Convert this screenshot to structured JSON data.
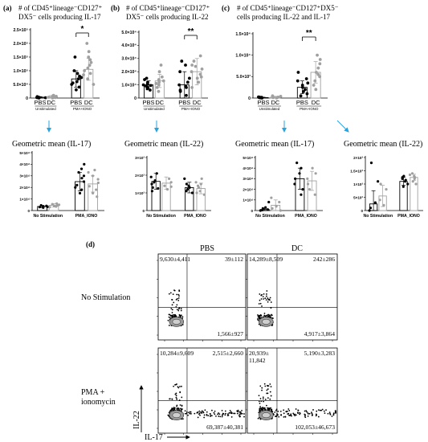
{
  "figure": {
    "panel_labels": [
      "(a)",
      "(b)",
      "(c)",
      "(d)"
    ],
    "geo_titles": [
      "Geometric mean (IL-17)",
      "Geometric mean (IL-22)",
      "Geometric mean (IL-17)",
      "Geometric mean (IL-22)"
    ],
    "colors": {
      "pbs": "#000000",
      "dc": "#a0a0a0",
      "arrow": "#29a3dc",
      "gate": "#9a9a9a"
    },
    "flow": {
      "col_titles": [
        "PBS",
        "DC"
      ],
      "row_titles": [
        [
          "No Stimulation"
        ],
        [
          "PMA +",
          "ionomycin"
        ]
      ],
      "y_axis": "IL-22",
      "x_axis": "IL-17",
      "quadrants": [
        {
          "ul": [
            "9,630±4,411"
          ],
          "ur": [
            "39±112"
          ],
          "lr": [
            "1,566±927"
          ]
        },
        {
          "ul": [
            "14,289±8,509"
          ],
          "ur": [
            "242±286"
          ],
          "lr": [
            "4,917±3,864"
          ]
        },
        {
          "ul": [
            "10,284±9,609"
          ],
          "ur": [
            "2,515±2,660"
          ],
          "lr": [
            "69,387±40,381"
          ]
        },
        {
          "ul": [
            "20,939±",
            "11,842"
          ],
          "ur": [
            "5,190±3,283"
          ],
          "lr": [
            "102,053±46,673"
          ]
        }
      ]
    }
  },
  "chart_data": [
    {
      "type": "bar",
      "panel": "(a)",
      "title_lines": [
        "# of CD45⁺lineage⁻CD127⁺",
        "DX5⁻ cells producing IL-17"
      ],
      "ylim": [
        0,
        250000
      ],
      "ytick_labels": [
        "0",
        "5.0×10⁴",
        "1.0×10⁵",
        "1.5×10⁵",
        "2.0×10⁵",
        "2.5×10⁵"
      ],
      "ytick_values": [
        0,
        50000,
        100000,
        150000,
        200000,
        250000
      ],
      "categories": [
        "PBS",
        "DC",
        "PBS",
        "DC"
      ],
      "group_labels": [
        "Unstimulated",
        "PMA+IONO"
      ],
      "values": [
        3000,
        5000,
        70000,
        105000
      ],
      "errors": [
        2000,
        4000,
        30000,
        40000
      ],
      "points": [
        [
          0,
          1000,
          2000,
          3000,
          4000,
          5000,
          1500
        ],
        [
          0,
          2000,
          4000,
          6000,
          8000,
          10000,
          3000
        ],
        [
          30000,
          40000,
          50000,
          60000,
          70000,
          80000,
          90000,
          100000,
          55000,
          75000,
          150000
        ],
        [
          50000,
          70000,
          90000,
          110000,
          130000,
          150000,
          170000,
          85000,
          120000,
          200000,
          140000,
          100000
        ]
      ],
      "significance": "*"
    },
    {
      "type": "bar",
      "panel": "(b)",
      "title_lines": [
        "# of CD45⁺lineage⁻CD127⁺",
        "DX5⁻ cells producing IL-22"
      ],
      "ylim": [
        0,
        50000
      ],
      "ytick_labels": [
        "0",
        "1.0×10⁴",
        "2.0×10⁴",
        "3.0×10⁴",
        "4.0×10⁴",
        "5.0×10⁴"
      ],
      "ytick_values": [
        0,
        10000,
        20000,
        30000,
        40000,
        50000
      ],
      "categories": [
        "PBS",
        "DC",
        "PBS",
        "DC"
      ],
      "group_labels": [
        "Unstimulated",
        "PMA+IONO"
      ],
      "values": [
        10000,
        13000,
        10000,
        20000
      ],
      "errors": [
        3000,
        5000,
        10000,
        10000
      ],
      "points": [
        [
          6000,
          7000,
          8000,
          9000,
          10000,
          11000,
          12000,
          14000,
          15000,
          9500,
          10500
        ],
        [
          5000,
          8000,
          10000,
          12000,
          14000,
          16000,
          20000,
          25000,
          11000,
          13000
        ],
        [
          2000,
          5000,
          8000,
          10000,
          12000,
          15000,
          20000,
          25000,
          28000,
          6000,
          9000
        ],
        [
          8000,
          12000,
          15000,
          18000,
          20000,
          22000,
          25000,
          28000,
          32000,
          16000,
          24000
        ]
      ],
      "significance": "**"
    },
    {
      "type": "bar",
      "panel": "(c)",
      "title_lines": [
        "# of CD45⁺lineage⁻CD127⁺DX5⁻",
        "cells producing IL-22 and IL-17"
      ],
      "ylim": [
        0,
        15000
      ],
      "ytick_labels": [
        "0",
        "5.0×10³",
        "1.0×10⁴",
        "1.5×10⁴"
      ],
      "ytick_values": [
        0,
        5000,
        10000,
        15000
      ],
      "categories": [
        "PBS",
        "DC",
        "PBS",
        "DC"
      ],
      "group_labels": [
        "Unstimulated",
        "PMA+IONO"
      ],
      "values": [
        100,
        200,
        2500,
        6000
      ],
      "errors": [
        100,
        200,
        1500,
        2500
      ],
      "points": [
        [
          0,
          50,
          100,
          150,
          200,
          250
        ],
        [
          0,
          100,
          200,
          300,
          400,
          500
        ],
        [
          500,
          1000,
          1500,
          2000,
          2500,
          3000,
          3500,
          4000,
          4500,
          6000
        ],
        [
          2000,
          3000,
          4000,
          5000,
          6000,
          7000,
          8000,
          9000,
          10000,
          5500
        ]
      ],
      "significance": "**"
    },
    {
      "type": "bar",
      "panel": "(a) geometric mean",
      "title": "Geometric mean (IL-17)",
      "ylim": [
        0,
        50000
      ],
      "ytick_labels": [
        "0",
        "1×10⁴",
        "2×10⁴",
        "3×10⁴",
        "4×10⁴",
        "5×10⁴"
      ],
      "ytick_values": [
        0,
        10000,
        20000,
        30000,
        40000,
        50000
      ],
      "categories": [
        "PBS",
        "DC",
        "PBS",
        "DC"
      ],
      "group_labels": [
        "No Stimulation",
        "PMA_IONO"
      ],
      "values": [
        3500,
        4500,
        25000,
        23000
      ],
      "errors": [
        1000,
        1500,
        8000,
        7000
      ],
      "points": [
        [
          2500,
          3000,
          3500,
          4000,
          4500,
          3200
        ],
        [
          3000,
          3500,
          4000,
          4500,
          5000,
          5500,
          6000
        ],
        [
          15000,
          18000,
          20000,
          22000,
          25000,
          28000,
          30000,
          33000,
          36000,
          40000
        ],
        [
          12000,
          15000,
          18000,
          21000,
          24000,
          27000,
          30000,
          33000,
          35000
        ]
      ]
    },
    {
      "type": "bar",
      "panel": "(b) geometric mean",
      "title": "Geometric mean (IL-22)",
      "ylim": [
        0,
        3000
      ],
      "ytick_labels": [
        "0",
        "1×10³",
        "2×10³",
        "3×10³"
      ],
      "ytick_values": [
        0,
        1000,
        2000,
        3000
      ],
      "categories": [
        "PBS",
        "DC",
        "PBS",
        "DC"
      ],
      "group_labels": [
        "No Stimulation",
        "PMA_IONO"
      ],
      "values": [
        1650,
        1550,
        1300,
        1250
      ],
      "errors": [
        450,
        350,
        300,
        300
      ],
      "points": [
        [
          1100,
          1300,
          1500,
          1700,
          1900,
          2100,
          1250,
          1600
        ],
        [
          1200,
          1400,
          1600,
          1800,
          1350
        ],
        [
          1000,
          1100,
          1200,
          1300,
          1400,
          1500,
          1800
        ],
        [
          900,
          1000,
          1100,
          1300,
          1400,
          1500,
          1600,
          1800
        ]
      ]
    },
    {
      "type": "bar",
      "panel": "(c) geometric mean IL-17",
      "title": "Geometric mean (IL-17)",
      "ylim": [
        0,
        50000
      ],
      "ytick_labels": [
        "0",
        "1×10⁴",
        "2×10⁴",
        "3×10⁴",
        "4×10⁴",
        "5×10⁴"
      ],
      "ytick_values": [
        0,
        10000,
        20000,
        30000,
        40000,
        50000
      ],
      "categories": [
        "PBS",
        "DC",
        "PBS",
        "DC"
      ],
      "group_labels": [
        "No Stimulation",
        "PMA_IONO"
      ],
      "values": [
        1000,
        5000,
        30000,
        28000
      ],
      "errors": [
        1000,
        5000,
        10000,
        9000
      ],
      "points": [
        [
          0,
          500,
          1000,
          2000,
          3000,
          8000
        ],
        [
          0,
          2000,
          4000,
          8000,
          12000
        ],
        [
          15000,
          20000,
          25000,
          30000,
          35000,
          40000,
          45000
        ],
        [
          15000,
          20000,
          25000,
          30000,
          35000,
          40000
        ]
      ]
    },
    {
      "type": "bar",
      "panel": "(c) geometric mean IL-22",
      "title": "Geometric mean (IL-22)",
      "ylim": [
        0,
        2000
      ],
      "ytick_labels": [
        "0",
        "5×10²",
        "1×10³",
        "1.5×10³",
        "2×10³"
      ],
      "ytick_values": [
        0,
        500,
        1000,
        1500,
        2000
      ],
      "categories": [
        "PBS",
        "DC",
        "PBS",
        "DC"
      ],
      "group_labels": [
        "No Stimulation",
        "PMA_IONO"
      ],
      "values": [
        250,
        550,
        1100,
        1250
      ],
      "errors": [
        500,
        400,
        150,
        120
      ],
      "points": [
        [
          0,
          100,
          300,
          1100,
          1800
        ],
        [
          200,
          400,
          800,
          1000
        ],
        [
          900,
          1000,
          1100,
          1150,
          1200,
          1250,
          1300
        ],
        [
          1000,
          1100,
          1200,
          1250,
          1300,
          1350,
          1400
        ]
      ]
    }
  ]
}
